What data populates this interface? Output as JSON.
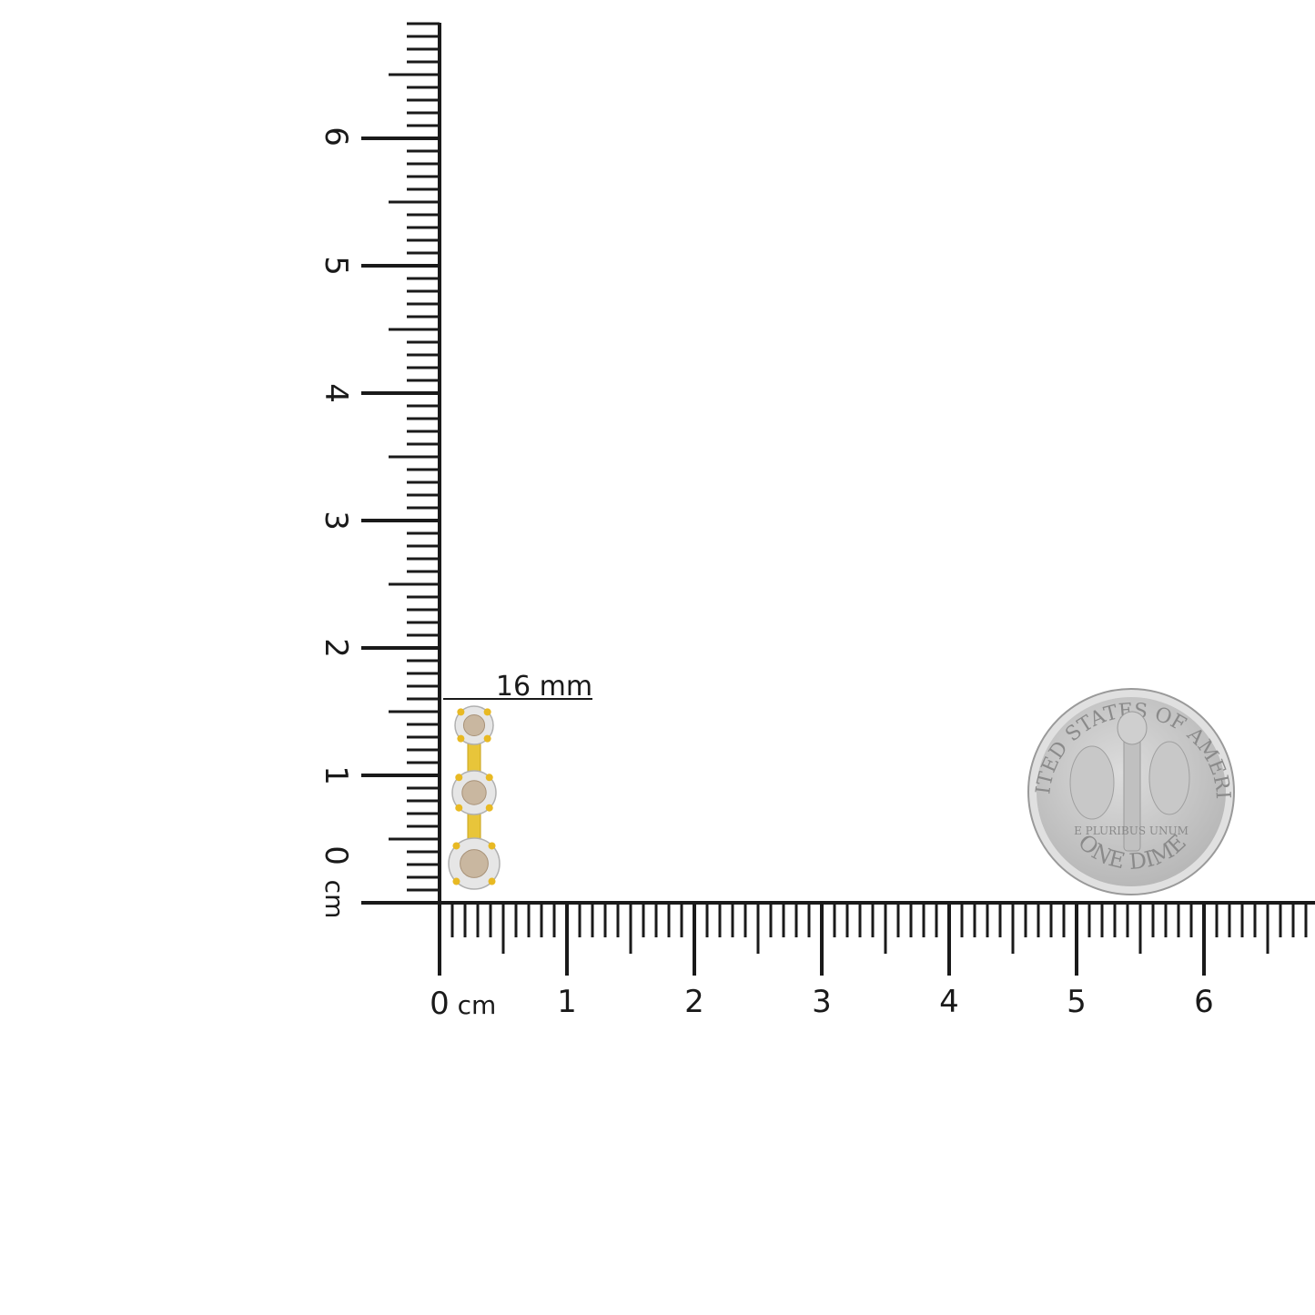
{
  "ruler": {
    "unit": "cm",
    "vertical_labels": [
      "0",
      "1",
      "2",
      "3",
      "4",
      "5",
      "6"
    ],
    "horizontal_labels": [
      "0",
      "1",
      "2",
      "3",
      "4",
      "5",
      "6"
    ],
    "tick_color": "#1a1a1a"
  },
  "product": {
    "measurement_label": "16 mm",
    "stones": 3,
    "metal_color": "#e8b923",
    "setting_color": "#e6e6e6",
    "stone_color": "#c9b7a0"
  },
  "coin": {
    "top_legend": "UNITED STATES OF AMERICA",
    "motto": "E PLURIBUS UNUM",
    "denomination": "ONE DIME",
    "color": "#c8c8c8"
  }
}
